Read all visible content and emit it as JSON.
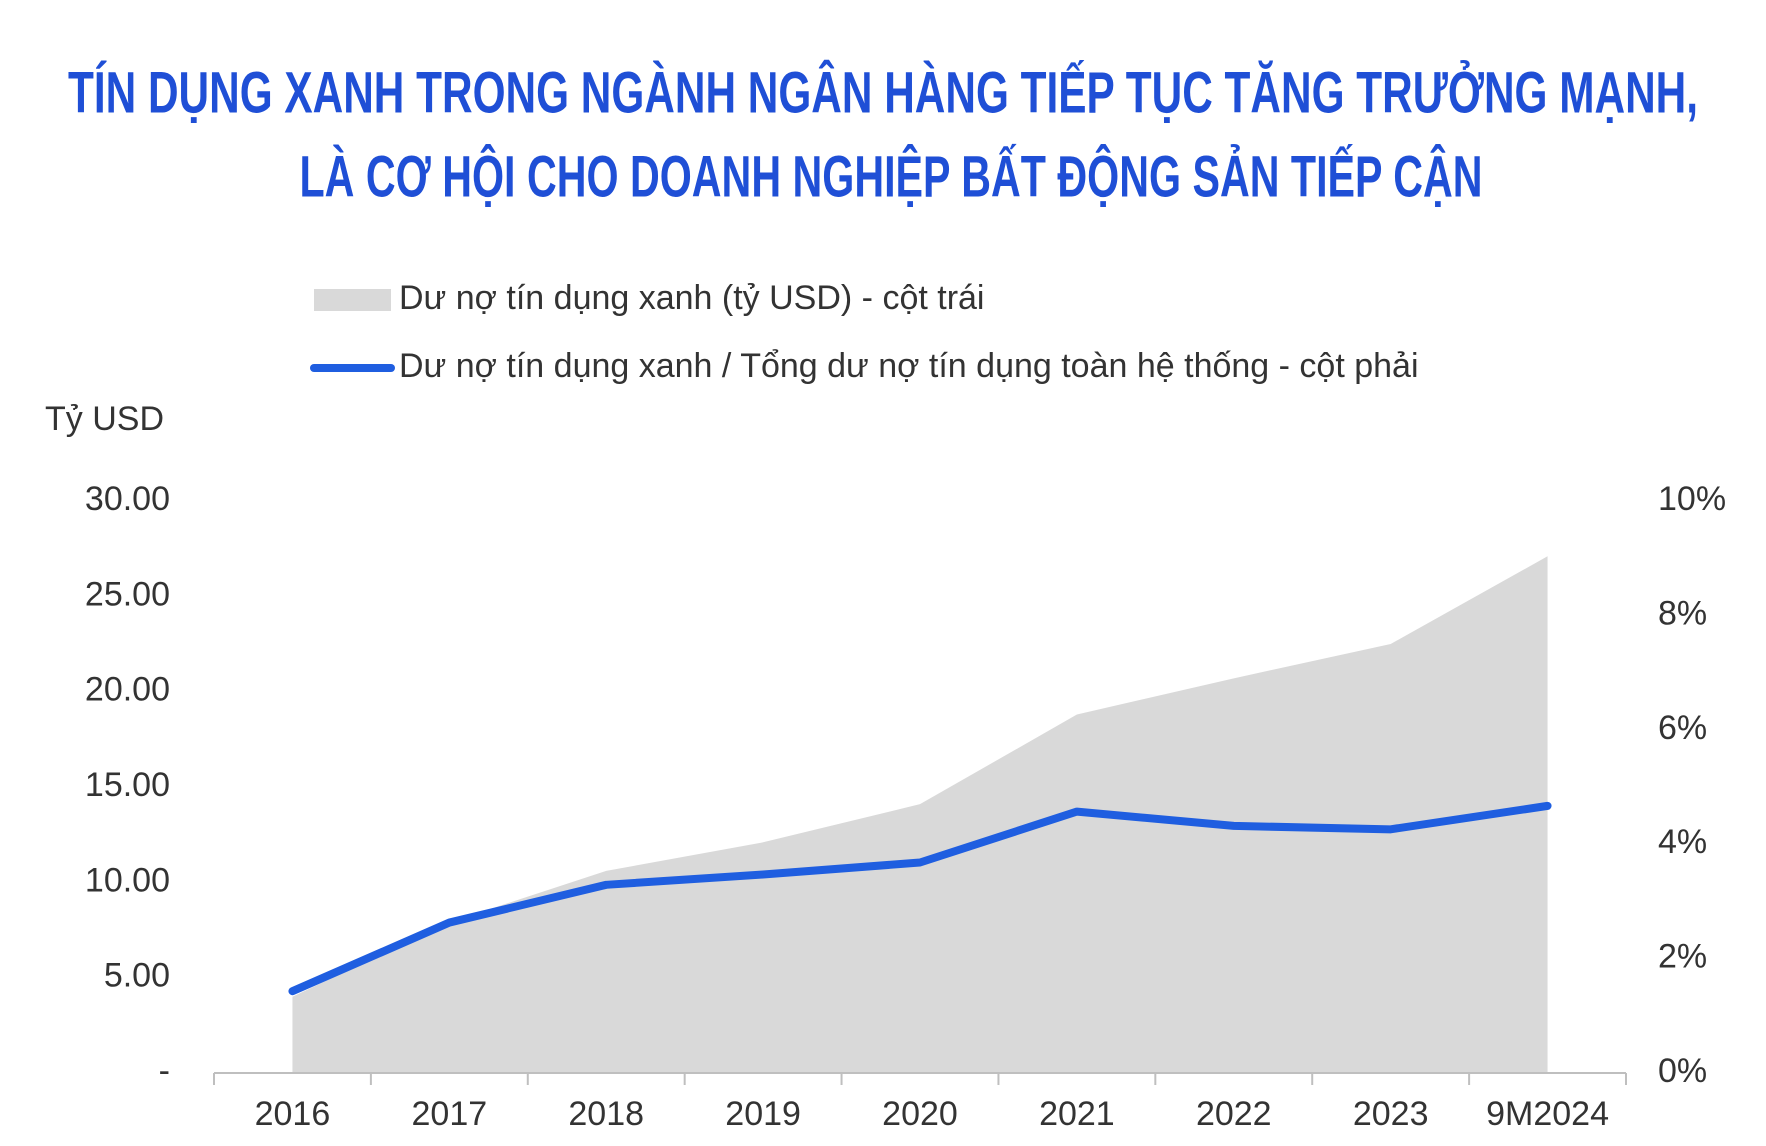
{
  "chart_data": {
    "type": "area-line",
    "title": [
      "TÍN DỤNG XANH TRONG NGÀNH NGÂN HÀNG TIẾP TỤC TĂNG TRƯỞNG MẠNH,",
      "LÀ CƠ HỘI CHO DOANH NGHIỆP BẤT ĐỘNG SẢN TIẾP CẬN"
    ],
    "y_label": "Tỷ USD",
    "categories": [
      "2016",
      "2017",
      "2018",
      "2019",
      "2020",
      "2021",
      "2022",
      "2023",
      "9M2024"
    ],
    "series": [
      {
        "name": "Dư nợ tín dụng xanh (tỷ USD) - cột trái",
        "type": "area",
        "color": "#d9d9d9",
        "values": [
          4.0,
          7.9,
          10.6,
          12.1,
          14.1,
          18.8,
          20.7,
          22.5,
          27.1
        ]
      },
      {
        "name": "Dư nợ tín dụng xanh / Tổng dư nợ tín dụng toàn hệ thống - cột phải",
        "type": "line",
        "axis": "y2",
        "color": "#1f5ee0",
        "values": [
          1.43,
          2.63,
          3.29,
          3.47,
          3.68,
          4.57,
          4.32,
          4.26,
          4.67
        ]
      }
    ],
    "ylim": [
      0,
      30
    ],
    "yticks": [
      {
        "value": 0,
        "label": "-"
      },
      {
        "value": 5,
        "label": "5.00"
      },
      {
        "value": 10,
        "label": "10.00"
      },
      {
        "value": 15,
        "label": "15.00"
      },
      {
        "value": 20,
        "label": "20.00"
      },
      {
        "value": 25,
        "label": "25.00"
      },
      {
        "value": 30,
        "label": "30.00"
      }
    ],
    "y2lim": [
      0,
      10
    ],
    "y2ticks": [
      {
        "value": 0,
        "label": "0%"
      },
      {
        "value": 2,
        "label": "2%"
      },
      {
        "value": 4,
        "label": "4%"
      },
      {
        "value": 6,
        "label": "6%"
      },
      {
        "value": 8,
        "label": "8%"
      },
      {
        "value": 10,
        "label": "10%"
      }
    ]
  }
}
